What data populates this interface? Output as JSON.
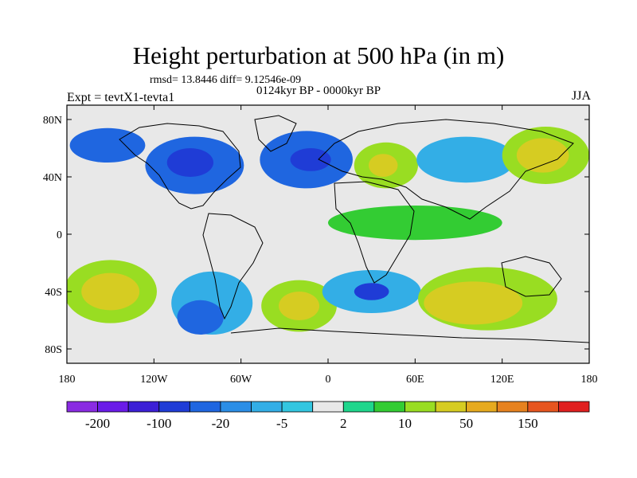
{
  "chart_data": {
    "type": "heatmap",
    "title": "Height perturbation at 500 hPa (in m)",
    "stats_line": "rmsd= 13.8446 diff= 9.12546e-09",
    "period": "0124kyr BP - 0000kyr BP",
    "experiment": "Expt = tevtX1-tevta1",
    "season": "JJA",
    "x_ticks": [
      "180",
      "120W",
      "60W",
      "0",
      "60E",
      "120E",
      "180"
    ],
    "y_ticks": [
      "80N",
      "40N",
      "0",
      "40S",
      "80S"
    ],
    "xlim": [
      -180,
      180
    ],
    "ylim": [
      -90,
      90
    ],
    "colorbar_labels": [
      "-200",
      "-100",
      "-20",
      "-5",
      "2",
      "10",
      "50",
      "150"
    ],
    "colorbar_colors": [
      "#8a2be2",
      "#6a1be8",
      "#3c1fd6",
      "#1f3cd6",
      "#1f66e0",
      "#2b8ee6",
      "#33aee6",
      "#33c6e0",
      "#e8e8e8",
      "#1fd68c",
      "#33cc33",
      "#99dd22",
      "#d6cc22",
      "#e6aa1f",
      "#e6821f",
      "#e6551f",
      "#e01f1f"
    ],
    "regions": [
      {
        "name": "north-pacific-blue-high",
        "lon": -152,
        "lat": 62,
        "rx": 26,
        "ry": 12,
        "color": "#1f66e0"
      },
      {
        "name": "north-america-blue-low",
        "lon": -92,
        "lat": 48,
        "rx": 34,
        "ry": 20,
        "color": "#1f66e0"
      },
      {
        "name": "north-america-core",
        "lon": -95,
        "lat": 50,
        "rx": 16,
        "ry": 10,
        "color": "#1f3cd6"
      },
      {
        "name": "north-atlantic-blue",
        "lon": -15,
        "lat": 52,
        "rx": 32,
        "ry": 20,
        "color": "#1f66e0"
      },
      {
        "name": "north-atlantic-core",
        "lon": -12,
        "lat": 52,
        "rx": 14,
        "ry": 8,
        "color": "#1f3cd6"
      },
      {
        "name": "europe-high",
        "lon": 40,
        "lat": 48,
        "rx": 22,
        "ry": 16,
        "color": "#99dd22"
      },
      {
        "name": "europe-core",
        "lon": 38,
        "lat": 48,
        "rx": 10,
        "ry": 8,
        "color": "#d6cc22"
      },
      {
        "name": "asia-blue",
        "lon": 95,
        "lat": 52,
        "rx": 34,
        "ry": 16,
        "color": "#33aee6"
      },
      {
        "name": "north-pacific-high",
        "lon": 150,
        "lat": 55,
        "rx": 30,
        "ry": 20,
        "color": "#99dd22"
      },
      {
        "name": "north-pacific-core",
        "lon": 148,
        "lat": 55,
        "rx": 18,
        "ry": 12,
        "color": "#d6cc22"
      },
      {
        "name": "tropics-green",
        "lon": 60,
        "lat": 8,
        "rx": 60,
        "ry": 12,
        "color": "#33cc33"
      },
      {
        "name": "south-pacific-high",
        "lon": -150,
        "lat": -40,
        "rx": 32,
        "ry": 22,
        "color": "#99dd22"
      },
      {
        "name": "south-pacific-core",
        "lon": -150,
        "lat": -40,
        "rx": 20,
        "ry": 13,
        "color": "#d6cc22"
      },
      {
        "name": "south-america-blue",
        "lon": -80,
        "lat": -48,
        "rx": 28,
        "ry": 22,
        "color": "#33aee6"
      },
      {
        "name": "south-america-core",
        "lon": -88,
        "lat": -58,
        "rx": 16,
        "ry": 12,
        "color": "#1f66e0"
      },
      {
        "name": "south-atlantic-high",
        "lon": -20,
        "lat": -50,
        "rx": 26,
        "ry": 18,
        "color": "#99dd22"
      },
      {
        "name": "south-atlantic-core",
        "lon": -20,
        "lat": -50,
        "rx": 14,
        "ry": 10,
        "color": "#d6cc22"
      },
      {
        "name": "indian-ocean-blue",
        "lon": 30,
        "lat": -40,
        "rx": 34,
        "ry": 15,
        "color": "#33aee6"
      },
      {
        "name": "indian-ocean-core",
        "lon": 30,
        "lat": -40,
        "rx": 12,
        "ry": 6,
        "color": "#1f3cd6"
      },
      {
        "name": "australia-high",
        "lon": 110,
        "lat": -45,
        "rx": 48,
        "ry": 22,
        "color": "#99dd22"
      },
      {
        "name": "australia-core",
        "lon": 100,
        "lat": -48,
        "rx": 34,
        "ry": 15,
        "color": "#d6cc22"
      }
    ]
  }
}
